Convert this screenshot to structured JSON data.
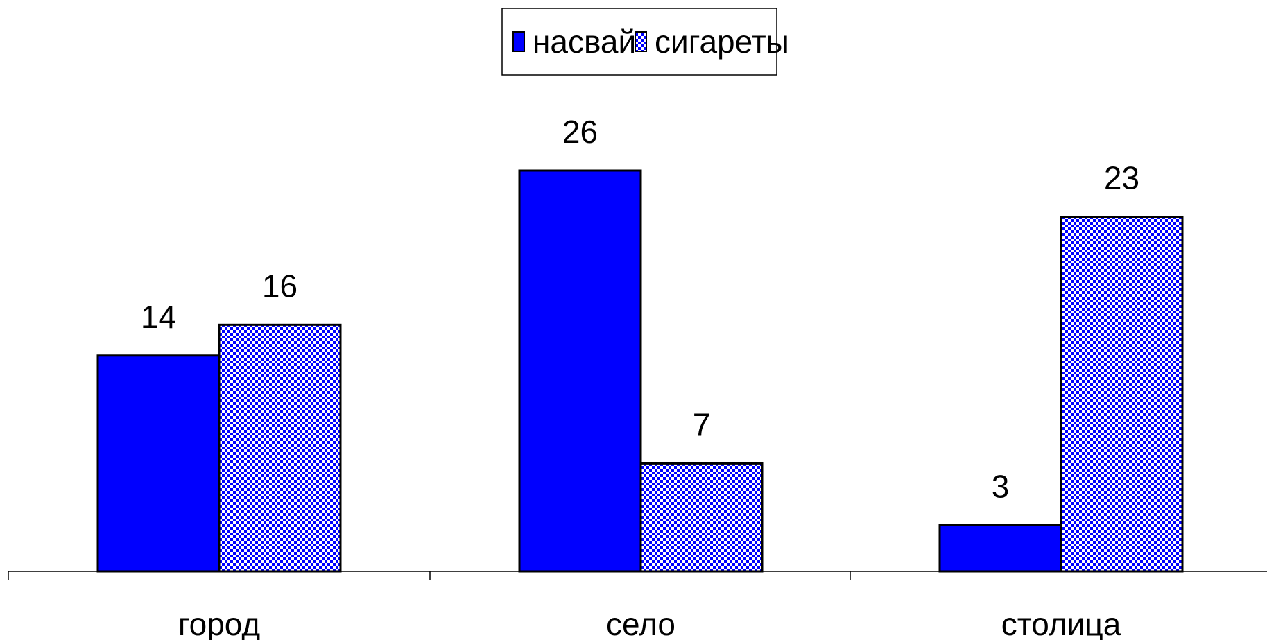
{
  "chart_data": {
    "type": "bar",
    "categories": [
      "город",
      "село",
      "столица"
    ],
    "series": [
      {
        "name": "насвай",
        "values": [
          14,
          26,
          3
        ],
        "color": "#0000ff",
        "pattern": "solid"
      },
      {
        "name": "сигареты",
        "values": [
          16,
          7,
          23
        ],
        "color": "#0000ff",
        "pattern": "checkered"
      }
    ],
    "title": "",
    "xlabel": "",
    "ylabel": "",
    "ylim": [
      0,
      26
    ],
    "grid": false,
    "legend_position": "top-center",
    "data_labels": true
  }
}
